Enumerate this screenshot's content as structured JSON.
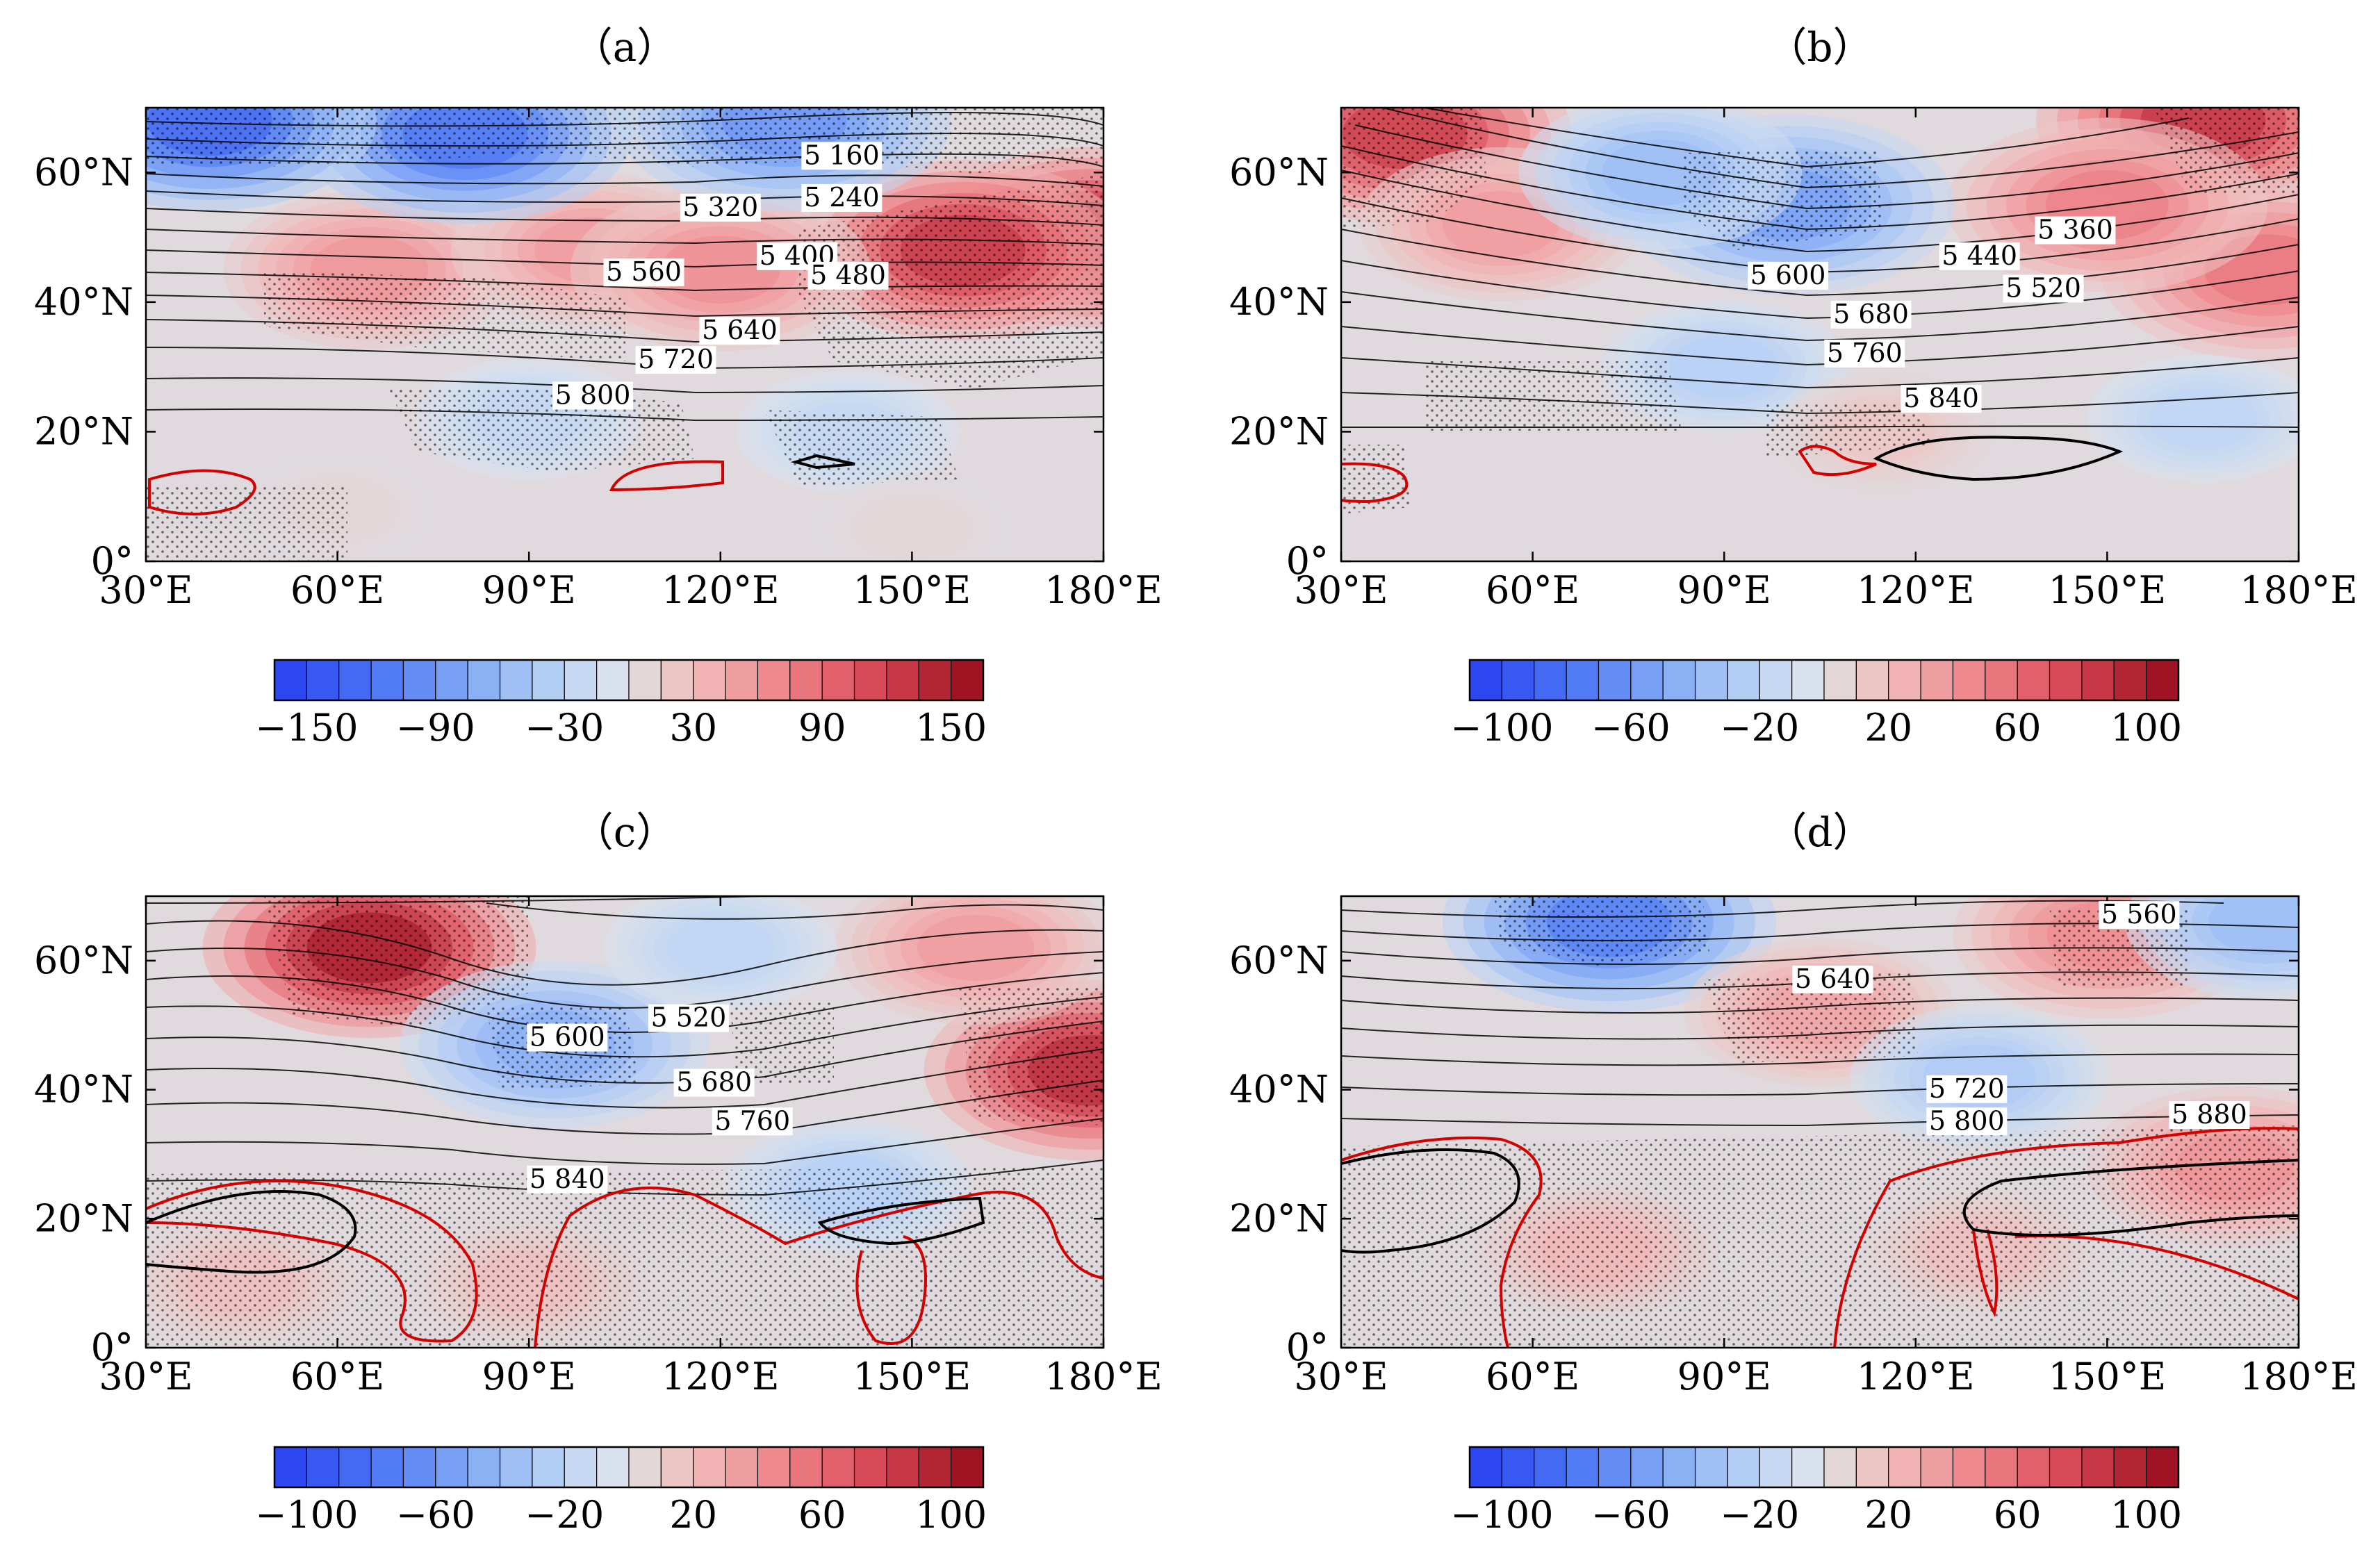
{
  "chart_data": [
    {
      "panel": "(a)",
      "type": "heatmap",
      "title": "（a）",
      "x_ticks": [
        "30°E",
        "60°E",
        "90°E",
        "120°E",
        "150°E",
        "180°E"
      ],
      "y_ticks": [
        "0°",
        "20°N",
        "40°N",
        "60°N"
      ],
      "xlim": [
        30,
        180
      ],
      "ylim": [
        0,
        70
      ],
      "colorbar": {
        "min": -150,
        "max": 150,
        "ticks": [
          "−150",
          "−90",
          "−30",
          "30",
          "90",
          "150"
        ]
      },
      "contour_labels": [
        {
          "text": "5 160",
          "lon": 139,
          "lat": 61.5
        },
        {
          "text": "5 240",
          "lon": 139,
          "lat": 55
        },
        {
          "text": "5 320",
          "lon": 120,
          "lat": 53.5
        },
        {
          "text": "5 400",
          "lon": 132,
          "lat": 46
        },
        {
          "text": "5 480",
          "lon": 140,
          "lat": 43
        },
        {
          "text": "5 560",
          "lon": 108,
          "lat": 43.5
        },
        {
          "text": "5 640",
          "lon": 123,
          "lat": 34.5
        },
        {
          "text": "5 720",
          "lon": 113,
          "lat": 30
        },
        {
          "text": "5 800",
          "lon": 100,
          "lat": 24.5
        }
      ],
      "anomaly_centers": [
        {
          "lon": 178,
          "lat": 50,
          "value": 150
        },
        {
          "lon": 158,
          "lat": 48,
          "value": 140
        },
        {
          "lon": 65,
          "lat": 45,
          "value": 65
        },
        {
          "lon": 100,
          "lat": 48,
          "value": 60
        },
        {
          "lon": 120,
          "lat": 45,
          "value": 70
        },
        {
          "lon": 80,
          "lat": 66,
          "value": -130
        },
        {
          "lon": 130,
          "lat": 68,
          "value": -100
        },
        {
          "lon": 40,
          "lat": 68,
          "value": -140
        },
        {
          "lon": 90,
          "lat": 22,
          "value": -25
        },
        {
          "lon": 140,
          "lat": 20,
          "value": -25
        },
        {
          "lon": 60,
          "lat": 8,
          "value": 8
        },
        {
          "lon": 150,
          "lat": 5,
          "value": 8
        }
      ]
    },
    {
      "panel": "(b)",
      "type": "heatmap",
      "title": "（b）",
      "x_ticks": [
        "30°E",
        "60°E",
        "90°E",
        "120°E",
        "150°E",
        "180°E"
      ],
      "y_ticks": [
        "0°",
        "20°N",
        "40°N",
        "60°N"
      ],
      "xlim": [
        30,
        180
      ],
      "ylim": [
        0,
        70
      ],
      "colorbar": {
        "min": -100,
        "max": 100,
        "ticks": [
          "−100",
          "−60",
          "−20",
          "20",
          "60",
          "100"
        ]
      },
      "contour_labels": [
        {
          "text": "5 360",
          "lon": 145,
          "lat": 50
        },
        {
          "text": "5 440",
          "lon": 130,
          "lat": 46
        },
        {
          "text": "5 520",
          "lon": 140,
          "lat": 41
        },
        {
          "text": "5 600",
          "lon": 100,
          "lat": 43
        },
        {
          "text": "5 680",
          "lon": 113,
          "lat": 37
        },
        {
          "text": "5 760",
          "lon": 112,
          "lat": 31
        },
        {
          "text": "5 840",
          "lon": 124,
          "lat": 24
        }
      ],
      "anomaly_centers": [
        {
          "lon": 40,
          "lat": 66,
          "value": 90
        },
        {
          "lon": 165,
          "lat": 68,
          "value": 95
        },
        {
          "lon": 175,
          "lat": 45,
          "value": 60
        },
        {
          "lon": 150,
          "lat": 55,
          "value": 55
        },
        {
          "lon": 55,
          "lat": 52,
          "value": 40
        },
        {
          "lon": 100,
          "lat": 55,
          "value": -60
        },
        {
          "lon": 80,
          "lat": 60,
          "value": -40
        },
        {
          "lon": 90,
          "lat": 30,
          "value": -25
        },
        {
          "lon": 165,
          "lat": 22,
          "value": -20
        },
        {
          "lon": 115,
          "lat": 20,
          "value": 15
        }
      ]
    },
    {
      "panel": "(c)",
      "type": "heatmap",
      "title": "（c）",
      "x_ticks": [
        "30°E",
        "60°E",
        "90°E",
        "120°E",
        "150°E",
        "180°E"
      ],
      "y_ticks": [
        "0°",
        "20°N",
        "40°N",
        "60°N"
      ],
      "xlim": [
        30,
        180
      ],
      "ylim": [
        0,
        70
      ],
      "colorbar": {
        "min": -100,
        "max": 100,
        "ticks": [
          "−100",
          "−60",
          "−20",
          "20",
          "60",
          "100"
        ]
      },
      "contour_labels": [
        {
          "text": "5 520",
          "lon": 115,
          "lat": 50
        },
        {
          "text": "5 600",
          "lon": 96,
          "lat": 47
        },
        {
          "text": "5 680",
          "lon": 119,
          "lat": 40
        },
        {
          "text": "5 760",
          "lon": 125,
          "lat": 34
        },
        {
          "text": "5 840",
          "lon": 96,
          "lat": 25
        }
      ],
      "anomaly_centers": [
        {
          "lon": 65,
          "lat": 62,
          "value": 110
        },
        {
          "lon": 178,
          "lat": 43,
          "value": 100
        },
        {
          "lon": 160,
          "lat": 62,
          "value": 40
        },
        {
          "lon": 94,
          "lat": 47,
          "value": -50
        },
        {
          "lon": 120,
          "lat": 62,
          "value": -20
        },
        {
          "lon": 140,
          "lat": 25,
          "value": -25
        },
        {
          "lon": 90,
          "lat": 10,
          "value": 20
        },
        {
          "lon": 45,
          "lat": 10,
          "value": 20
        }
      ]
    },
    {
      "panel": "(d)",
      "type": "heatmap",
      "title": "（d）",
      "x_ticks": [
        "30°E",
        "60°E",
        "90°E",
        "120°E",
        "150°E",
        "180°E"
      ],
      "y_ticks": [
        "0°",
        "20°N",
        "40°N",
        "60°N"
      ],
      "xlim": [
        30,
        180
      ],
      "ylim": [
        0,
        70
      ],
      "colorbar": {
        "min": -100,
        "max": 100,
        "ticks": [
          "−100",
          "−60",
          "−20",
          "20",
          "60",
          "100"
        ]
      },
      "contour_labels": [
        {
          "text": "5 560",
          "lon": 155,
          "lat": 66
        },
        {
          "text": "5 640",
          "lon": 107,
          "lat": 56
        },
        {
          "text": "5 720",
          "lon": 128,
          "lat": 39
        },
        {
          "text": "5 800",
          "lon": 128,
          "lat": 34
        },
        {
          "text": "5 880",
          "lon": 166,
          "lat": 35
        }
      ],
      "anomaly_centers": [
        {
          "lon": 72,
          "lat": 66,
          "value": -80
        },
        {
          "lon": 150,
          "lat": 64,
          "value": 50
        },
        {
          "lon": 105,
          "lat": 52,
          "value": 35
        },
        {
          "lon": 170,
          "lat": 28,
          "value": 45
        },
        {
          "lon": 130,
          "lat": 42,
          "value": -30
        },
        {
          "lon": 175,
          "lat": 66,
          "value": -40
        },
        {
          "lon": 70,
          "lat": 15,
          "value": 25
        },
        {
          "lon": 130,
          "lat": 15,
          "value": 20
        }
      ]
    }
  ]
}
